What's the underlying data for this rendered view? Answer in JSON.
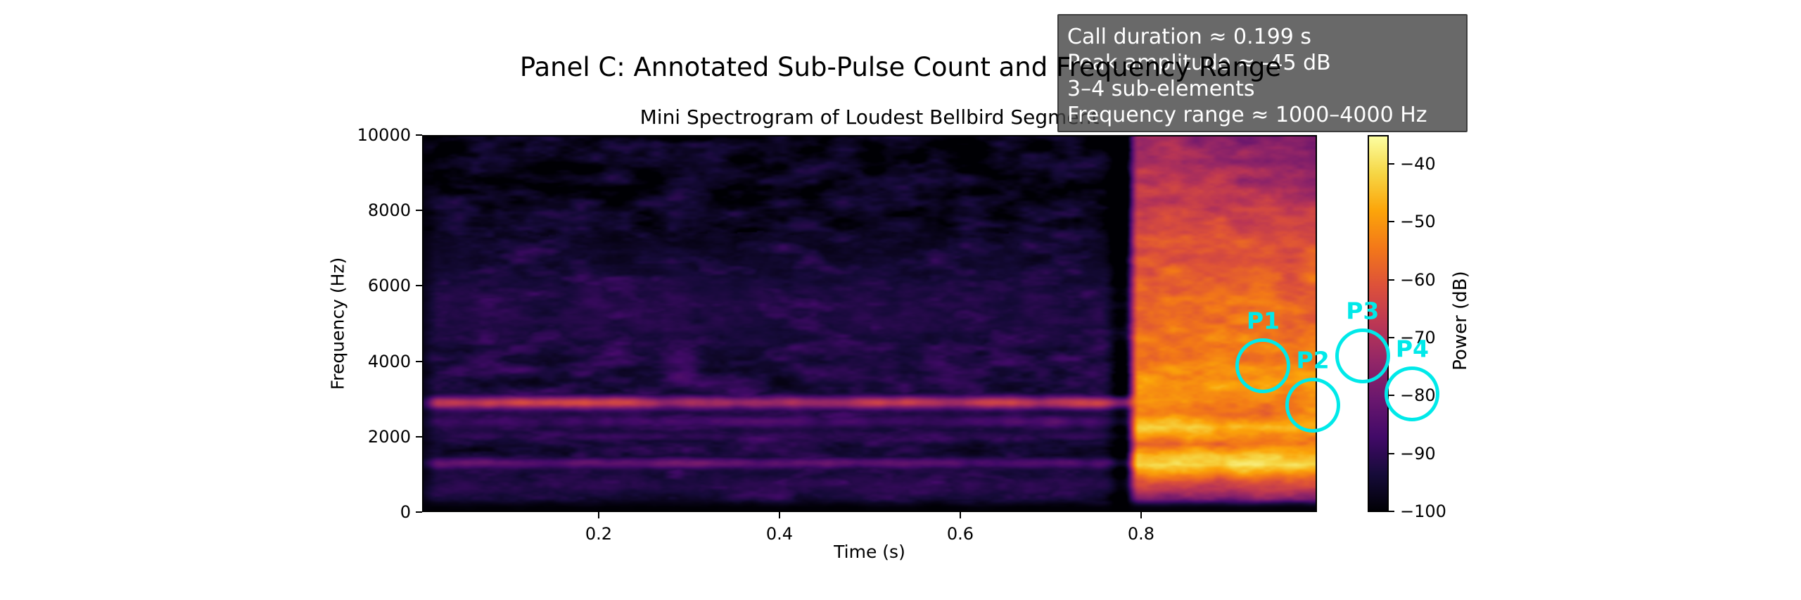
{
  "figure": {
    "title": "Panel C: Annotated Sub-Pulse Count and Frequency Range"
  },
  "axes": {
    "subtitle": "Mini Spectrogram of Loudest Bellbird Segment",
    "xlabel": "Time (s)",
    "ylabel": "Frequency (Hz)",
    "xtick_labels": [
      "0.2",
      "0.4",
      "0.6",
      "0.8"
    ],
    "ytick_labels": [
      "10000",
      "8000",
      "6000",
      "4000",
      "2000",
      "0"
    ]
  },
  "colorbar": {
    "label": "Power (dB)",
    "tick_labels": [
      "−40",
      "−50",
      "−60",
      "−70",
      "−80",
      "−90",
      "−100"
    ]
  },
  "annotation_box": {
    "bg_color": "#444444",
    "text_color": "#ffffff",
    "lines": [
      "Call duration ≈ 0.199 s",
      "Peak amplitude ≈ -45 dB",
      "3–4 sub-elements",
      "Frequency range ≈ 1000–4000 Hz"
    ]
  },
  "markers": {
    "color": "#00e9e9",
    "radius_px": 37,
    "items": [
      {
        "label": "P1",
        "time_s": 0.935,
        "freq_hz": 3880
      },
      {
        "label": "P2",
        "time_s": 0.99,
        "freq_hz": 2840
      },
      {
        "label": "P3",
        "time_s": 1.045,
        "freq_hz": 4140
      },
      {
        "label": "P4",
        "time_s": 1.1,
        "freq_hz": 3130
      }
    ]
  },
  "chart_data": {
    "type": "heatmap",
    "suptitle": "Panel C: Annotated Sub-Pulse Count and Frequency Range",
    "title": "Mini Spectrogram of Loudest Bellbird Segment",
    "xlabel": "Time (s)",
    "ylabel": "Frequency (Hz)",
    "xlim": [
      0.0,
      0.99
    ],
    "ylim": [
      0,
      10000
    ],
    "xticks": [
      0.2,
      0.4,
      0.6,
      0.8
    ],
    "yticks": [
      0,
      2000,
      4000,
      6000,
      8000,
      10000
    ],
    "grid": false,
    "colorbar": {
      "label": "Power (dB)",
      "vmin": -100,
      "vmax": -35,
      "ticks": [
        -40,
        -50,
        -60,
        -70,
        -80,
        -90,
        -100
      ],
      "colormap": "inferno"
    },
    "annotations": {
      "call_duration_s": 0.199,
      "peak_amplitude_db": -45,
      "sub_elements": "3–4",
      "frequency_range_hz": [
        1000,
        4000
      ],
      "sub_pulse_markers": [
        "P1",
        "P2",
        "P3",
        "P4"
      ]
    },
    "spectrogram_model": {
      "noise_floor_db": -95,
      "tonal_bands": [
        {
          "freq_hz": 2900,
          "sigma_hz": 130,
          "gain_db": 37
        },
        {
          "freq_hz": 1300,
          "sigma_hz": 110,
          "gain_db": 18
        },
        {
          "freq_hz": 2400,
          "sigma_hz": 140,
          "gain_db": 13
        },
        {
          "freq_hz": 2000,
          "sigma_hz": 100,
          "gain_db": 8
        },
        {
          "freq_hz": 5300,
          "sigma_hz": 900,
          "gain_db": 7
        },
        {
          "freq_hz": 700,
          "sigma_hz": 260,
          "gain_db": 8
        }
      ],
      "call": {
        "start_s": 0.79,
        "end_s": 0.99,
        "spectrum_db_by_hz": [
          [
            0,
            -88
          ],
          [
            200,
            -84
          ],
          [
            450,
            -72
          ],
          [
            800,
            -62
          ],
          [
            1000,
            -52
          ],
          [
            1250,
            -40
          ],
          [
            1500,
            -43
          ],
          [
            1800,
            -56
          ],
          [
            2050,
            -50
          ],
          [
            2250,
            -46
          ],
          [
            2600,
            -54
          ],
          [
            3000,
            -52
          ],
          [
            3400,
            -49
          ],
          [
            3800,
            -52
          ],
          [
            4300,
            -54
          ],
          [
            5000,
            -56
          ],
          [
            6000,
            -58
          ],
          [
            7000,
            -61
          ],
          [
            8000,
            -64
          ],
          [
            9000,
            -67
          ],
          [
            10000,
            -71
          ]
        ]
      },
      "colormap_stops": [
        [
          0.0,
          "#000004"
        ],
        [
          0.1,
          "#160b39"
        ],
        [
          0.2,
          "#420a68"
        ],
        [
          0.3,
          "#6a176e"
        ],
        [
          0.4,
          "#932667"
        ],
        [
          0.5,
          "#bc3754"
        ],
        [
          0.6,
          "#dd513a"
        ],
        [
          0.7,
          "#f37819"
        ],
        [
          0.8,
          "#fca50a"
        ],
        [
          0.9,
          "#f6d746"
        ],
        [
          1.0,
          "#fcffa4"
        ]
      ]
    }
  }
}
